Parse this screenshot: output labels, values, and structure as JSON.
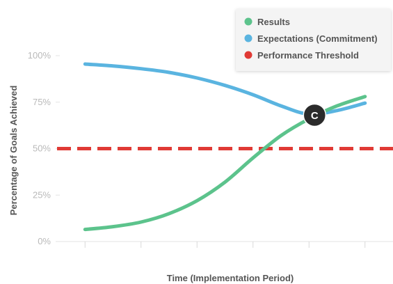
{
  "chart_data": {
    "type": "line",
    "xlabel": "Time (Implementation Period)",
    "ylabel": "Percentage of Goals Achieved",
    "y_ticks": [
      "0%",
      "25%",
      "50%",
      "75%",
      "100%"
    ],
    "y_tick_values": [
      0,
      25,
      50,
      75,
      100
    ],
    "ylim": [
      0,
      100
    ],
    "xlim": [
      0,
      6
    ],
    "x_tick_positions": [
      0.5,
      1.5,
      2.5,
      3.5,
      4.5,
      5.5
    ],
    "grid": false,
    "legend_position": "top-right",
    "series": [
      {
        "name": "Results",
        "color": "#5cc38c",
        "style": "solid",
        "x": [
          0.5,
          1.0,
          1.5,
          2.0,
          2.5,
          3.0,
          3.5,
          4.0,
          4.5,
          5.0,
          5.5
        ],
        "y": [
          6.5,
          8,
          10.5,
          15,
          22,
          32,
          45,
          57,
          66,
          73,
          78
        ]
      },
      {
        "name": "Expectations (Commitment)",
        "color": "#5ab4e0",
        "style": "solid",
        "x": [
          0.5,
          1.0,
          1.5,
          2.0,
          2.5,
          3.0,
          3.5,
          4.0,
          4.5,
          5.0,
          5.5
        ],
        "y": [
          95.5,
          94.5,
          93,
          91,
          88,
          84,
          79,
          73,
          68.5,
          70.5,
          74.5
        ]
      },
      {
        "name": "Performance Threshold",
        "color": "#e03a35",
        "style": "dashed",
        "x": [
          0,
          6
        ],
        "y": [
          50,
          50
        ]
      }
    ],
    "annotations": [
      {
        "label": "C",
        "x": 4.6,
        "y": 68
      }
    ]
  }
}
